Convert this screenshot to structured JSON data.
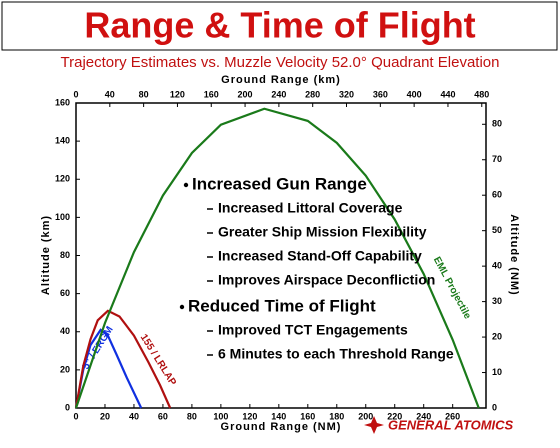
{
  "chart_data": {
    "type": "line",
    "title": "Range & Time of Flight",
    "subtitle": "Trajectory Estimates vs. Muzzle Velocity 52.0° Quadrant Elevation",
    "x_label": "Ground Range (NM)",
    "x2_label": "Ground Range (km)",
    "y_label": "Altitude (km)",
    "y2_label": "Altitude (NM)",
    "xlim": [
      0,
      283
    ],
    "xticks": [
      0,
      20,
      40,
      60,
      80,
      100,
      120,
      140,
      160,
      180,
      200,
      220,
      240,
      260
    ],
    "x2lim": [
      0,
      485
    ],
    "x2ticks": [
      0,
      40,
      80,
      120,
      160,
      200,
      240,
      280,
      320,
      360,
      400,
      440,
      480
    ],
    "ylim": [
      0,
      160
    ],
    "yticks": [
      0,
      20,
      40,
      60,
      80,
      100,
      120,
      140,
      160
    ],
    "y2lim": [
      0,
      86
    ],
    "y2ticks": [
      0,
      10,
      20,
      30,
      40,
      50,
      60,
      70,
      80
    ],
    "series": [
      {
        "name": "5\" / ERGM",
        "color": "#1030e0",
        "x": [
          0,
          5,
          10,
          17,
          22,
          28,
          35,
          40,
          45
        ],
        "values": [
          0,
          20,
          33,
          41,
          38,
          28,
          16,
          8,
          0
        ]
      },
      {
        "name": "155 / LRLAP",
        "color": "#b01010",
        "x": [
          0,
          5,
          10,
          15,
          22,
          30,
          40,
          50,
          58,
          65
        ],
        "values": [
          0,
          22,
          36,
          46,
          51,
          48,
          38,
          24,
          12,
          0
        ]
      },
      {
        "name": "EML Projectile",
        "color": "#1a7a1a",
        "x": [
          0,
          20,
          40,
          60,
          80,
          100,
          130,
          160,
          180,
          200,
          220,
          240,
          260,
          278
        ],
        "values": [
          0,
          44.6,
          81.8,
          111.5,
          133.8,
          148.6,
          157,
          150.6,
          139.1,
          121.9,
          98.9,
          70.3,
          35.8,
          0
        ]
      }
    ]
  },
  "bullets": [
    {
      "text": "Increased Gun Range",
      "sub": [
        "Increased Littoral Coverage",
        "Greater Ship Mission Flexibility",
        "Increased Stand-Off Capability",
        "Improves Airspace Deconfliction"
      ]
    },
    {
      "text": "Reduced Time of Flight",
      "sub": [
        "Improved TCT Engagements",
        "6 Minutes to each Threshold Range"
      ]
    }
  ],
  "logo": "GENERAL ATOMICS"
}
